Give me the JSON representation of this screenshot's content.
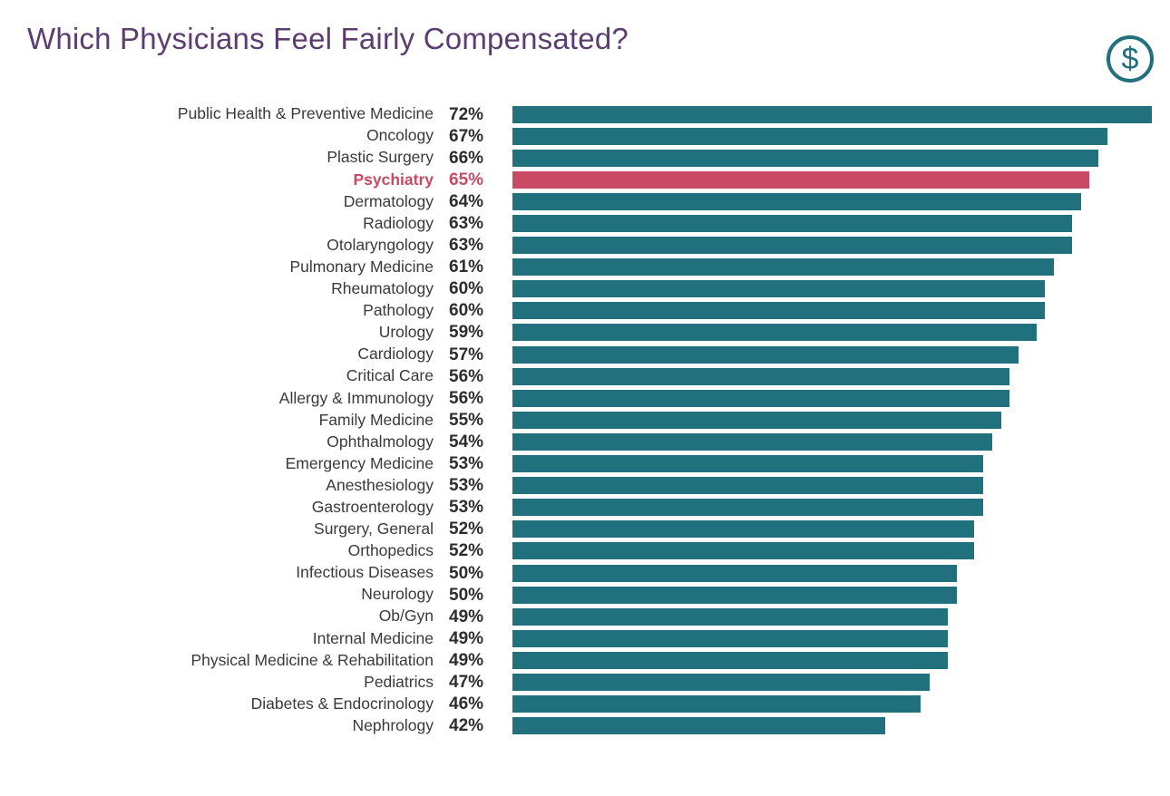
{
  "title": "Which Physicians Feel Fairly Compensated?",
  "icon": {
    "name": "dollar-icon",
    "symbol": "$"
  },
  "colors": {
    "bar": "#21707d",
    "highlight": "#c84a64",
    "title": "#5d3c71",
    "label": "#3a3a3a",
    "value": "#2d2d2d"
  },
  "chart_data": {
    "type": "bar",
    "orientation": "horizontal",
    "title": "Which Physicians Feel Fairly Compensated?",
    "value_suffix": "%",
    "xlim": [
      0,
      72
    ],
    "grid": false,
    "legend": false,
    "highlight_category": "Psychiatry",
    "categories": [
      "Public Health & Preventive Medicine",
      "Oncology",
      "Plastic Surgery",
      "Psychiatry",
      "Dermatology",
      "Radiology",
      "Otolaryngology",
      "Pulmonary Medicine",
      "Rheumatology",
      "Pathology",
      "Urology",
      "Cardiology",
      "Critical Care",
      "Allergy & Immunology",
      "Family Medicine",
      "Ophthalmology",
      "Emergency Medicine",
      "Anesthesiology",
      "Gastroenterology",
      "Surgery, General",
      "Orthopedics",
      "Infectious Diseases",
      "Neurology",
      "Ob/Gyn",
      "Internal Medicine",
      "Physical Medicine & Rehabilitation",
      "Pediatrics",
      "Diabetes & Endocrinology",
      "Nephrology"
    ],
    "values": [
      72,
      67,
      66,
      65,
      64,
      63,
      63,
      61,
      60,
      60,
      59,
      57,
      56,
      56,
      55,
      54,
      53,
      53,
      53,
      52,
      52,
      50,
      50,
      49,
      49,
      49,
      47,
      46,
      42
    ]
  }
}
